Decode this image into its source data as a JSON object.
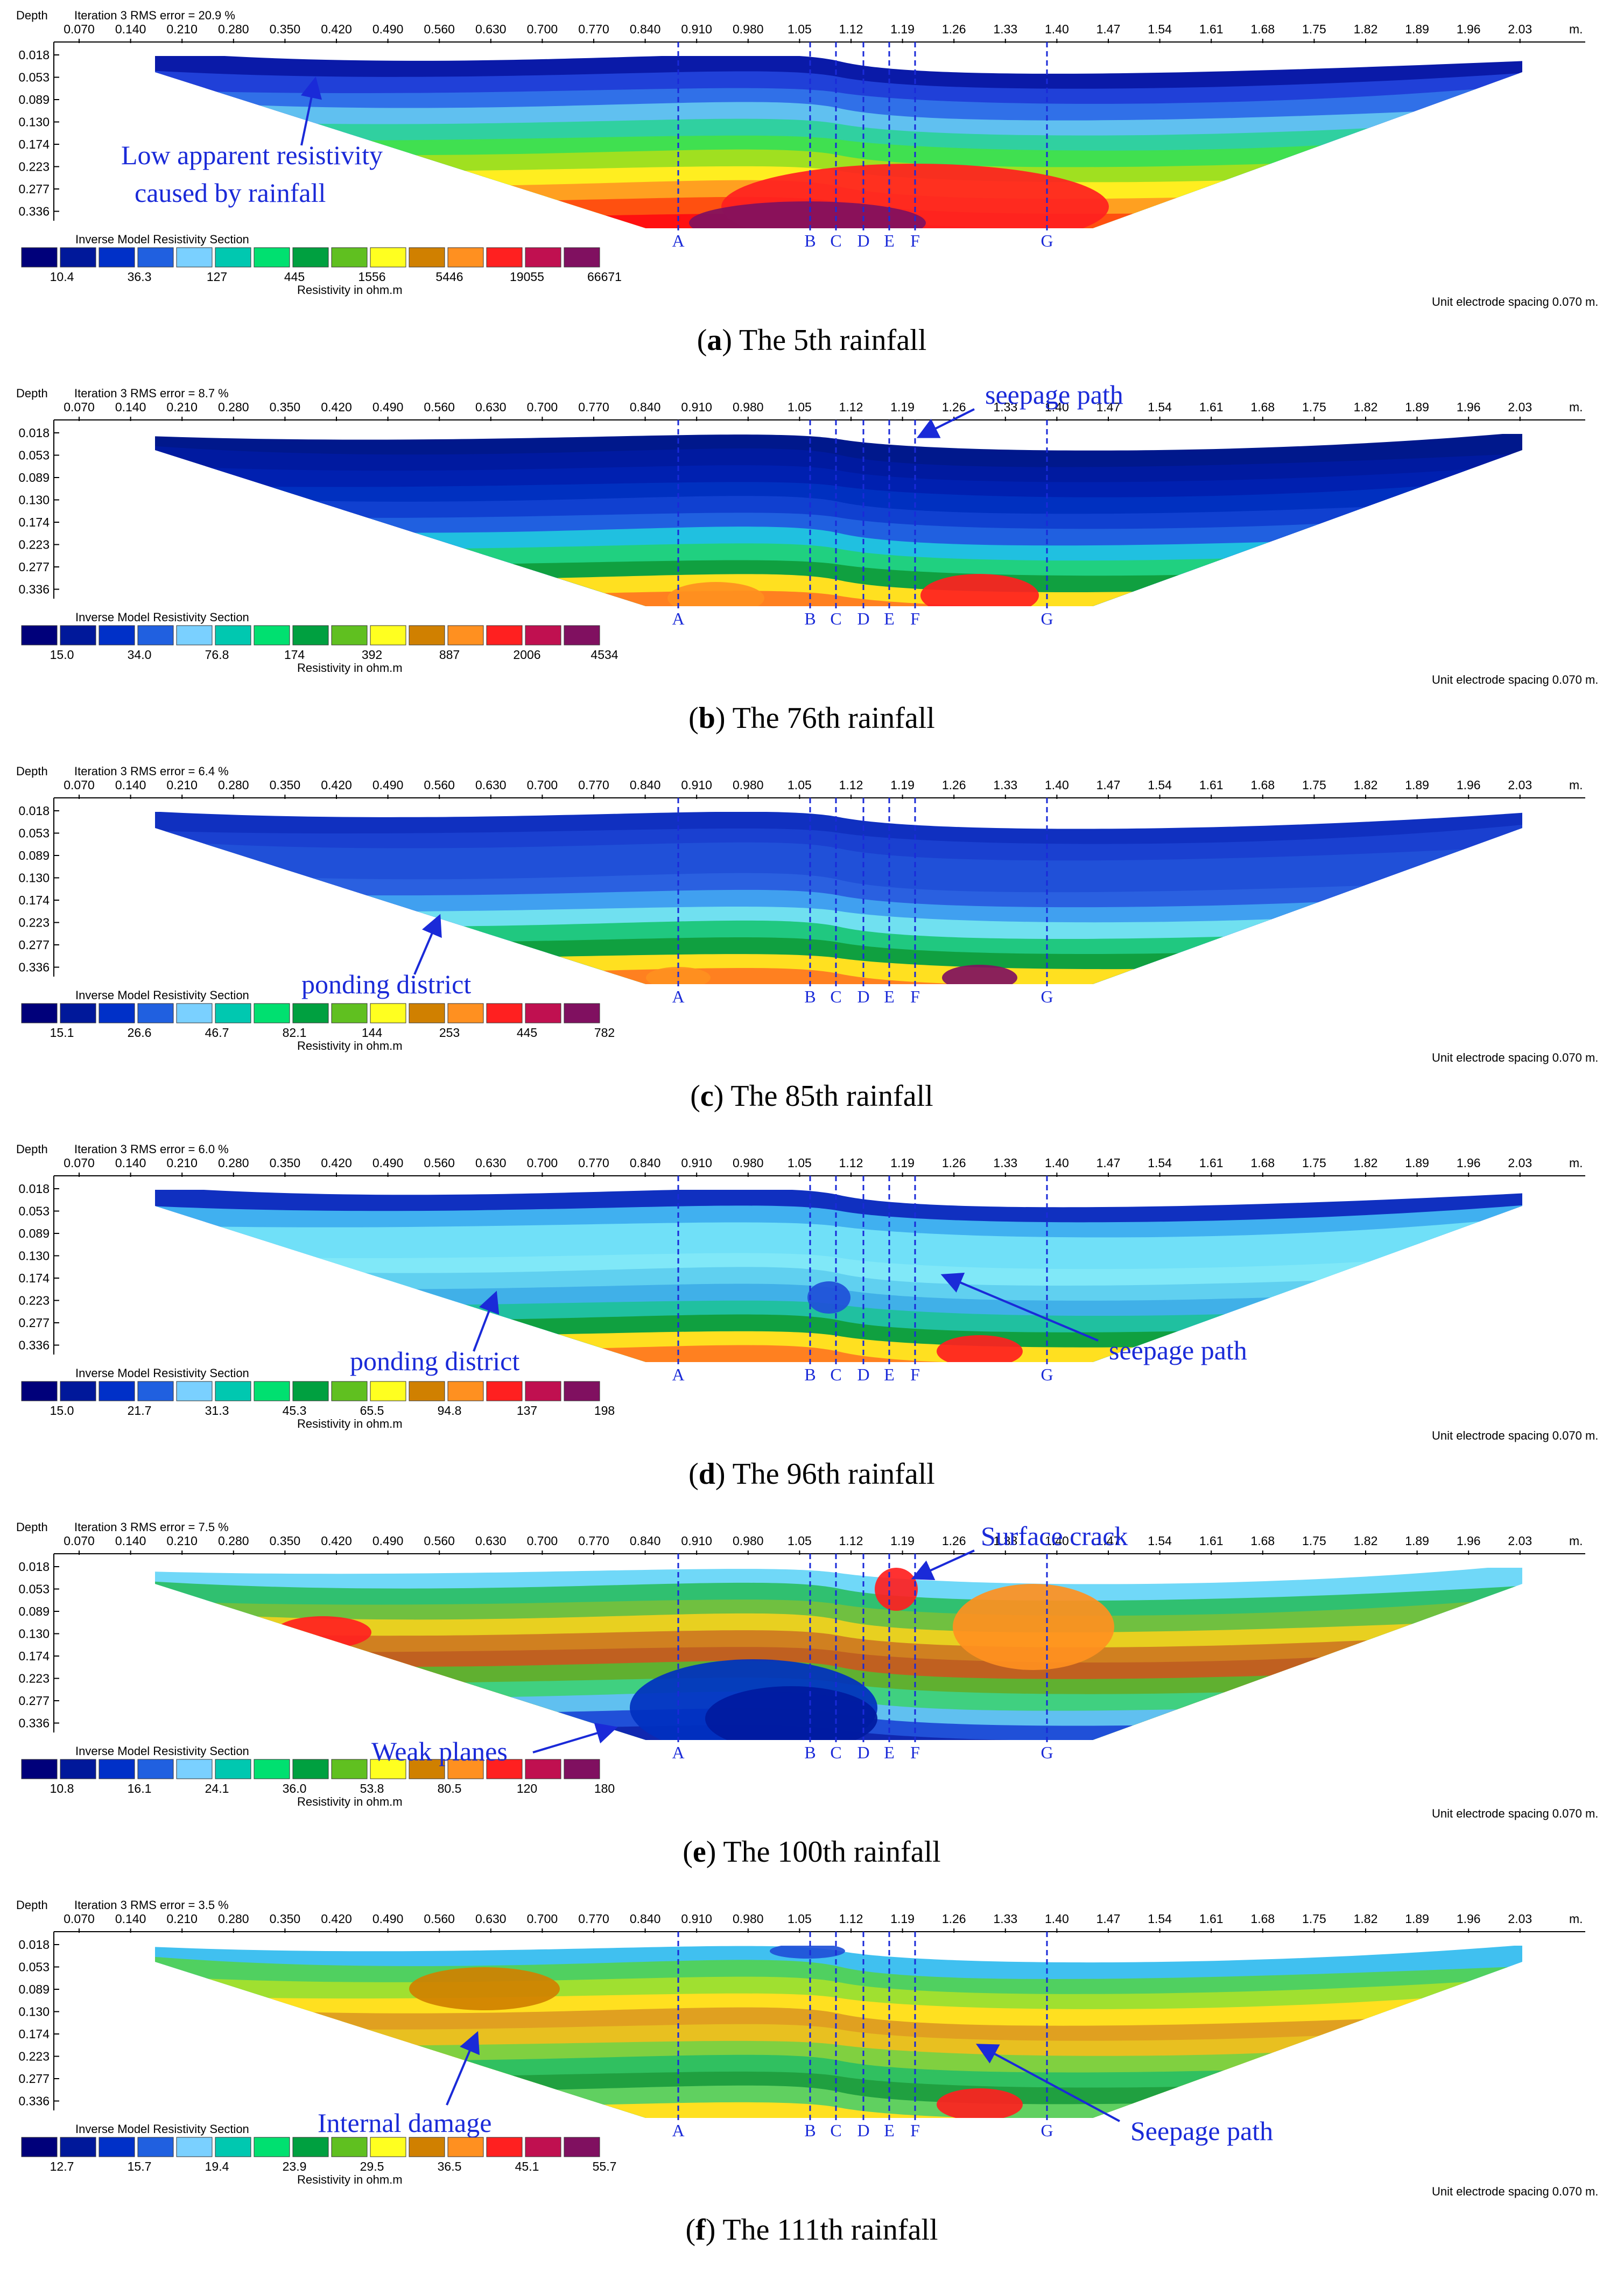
{
  "axis_header": {
    "depth_label": "Depth",
    "unit_label": "m.",
    "top_ticks": [
      "0.070",
      "0.140",
      "0.210",
      "0.280",
      "0.350",
      "0.420",
      "0.490",
      "0.560",
      "0.630",
      "0.700",
      "0.770",
      "0.840",
      "0.910",
      "0.980",
      "1.05",
      "1.12",
      "1.19",
      "1.26",
      "1.33",
      "1.40",
      "1.47",
      "1.54",
      "1.61",
      "1.68",
      "1.75",
      "1.82",
      "1.89",
      "1.96",
      "2.03"
    ],
    "depth_ticks": [
      "0.018",
      "0.053",
      "0.089",
      "0.130",
      "0.174",
      "0.223",
      "0.277",
      "0.336"
    ]
  },
  "legend": {
    "title": "Inverse Model Resistivity Section",
    "units": "Resistivity in ohm.m",
    "spacing": "Unit electrode spacing 0.070 m.",
    "colors": [
      "#00007a",
      "#00189a",
      "#0030c8",
      "#2060e0",
      "#7ad0ff",
      "#00c8b0",
      "#00e070",
      "#00a040",
      "#60c020",
      "#ffff20",
      "#d08000",
      "#ff9020",
      "#ff2020",
      "#c01050",
      "#801060"
    ]
  },
  "markers": [
    "A",
    "B",
    "C",
    "D",
    "E",
    "F",
    "G"
  ],
  "panels": [
    {
      "letter": "a",
      "caption": "The 5th rainfall",
      "header": "Iteration 3 RMS error = 20.9 %",
      "legend_values": [
        "10.4",
        "36.3",
        "127",
        "445",
        "1556",
        "5446",
        "19055",
        "66671"
      ],
      "annotations": [
        {
          "text": "Low apparent resistivity"
        },
        {
          "text": "caused by rainfall"
        }
      ]
    },
    {
      "letter": "b",
      "caption": "The 76th rainfall",
      "header": "Iteration 3 RMS error = 8.7 %",
      "legend_values": [
        "15.0",
        "34.0",
        "76.8",
        "174",
        "392",
        "887",
        "2006",
        "4534"
      ],
      "annotations": [
        {
          "text": "seepage path"
        }
      ]
    },
    {
      "letter": "c",
      "caption": "The 85th rainfall",
      "header": "Iteration 3 RMS error = 6.4 %",
      "legend_values": [
        "15.1",
        "26.6",
        "46.7",
        "82.1",
        "144",
        "253",
        "445",
        "782"
      ],
      "annotations": [
        {
          "text": "ponding district"
        }
      ]
    },
    {
      "letter": "d",
      "caption": "The 96th rainfall",
      "header": "Iteration 3 RMS error = 6.0 %",
      "legend_values": [
        "15.0",
        "21.7",
        "31.3",
        "45.3",
        "65.5",
        "94.8",
        "137",
        "198"
      ],
      "annotations": [
        {
          "text": "ponding district"
        },
        {
          "text": "seepage path"
        }
      ]
    },
    {
      "letter": "e",
      "caption": "The 100th rainfall",
      "header": "Iteration 3 RMS error = 7.5 %",
      "legend_values": [
        "10.8",
        "16.1",
        "24.1",
        "36.0",
        "53.8",
        "80.5",
        "120",
        "180"
      ],
      "annotations": [
        {
          "text": "Surface crack"
        },
        {
          "text": "Weak planes"
        }
      ]
    },
    {
      "letter": "f",
      "caption": "The 111th rainfall",
      "header": "Iteration 3 RMS error = 3.5 %",
      "legend_values": [
        "12.7",
        "15.7",
        "19.4",
        "23.9",
        "29.5",
        "36.5",
        "45.1",
        "55.7"
      ],
      "annotations": [
        {
          "text": "Internal damage"
        },
        {
          "text": "Seepage path"
        }
      ]
    }
  ]
}
